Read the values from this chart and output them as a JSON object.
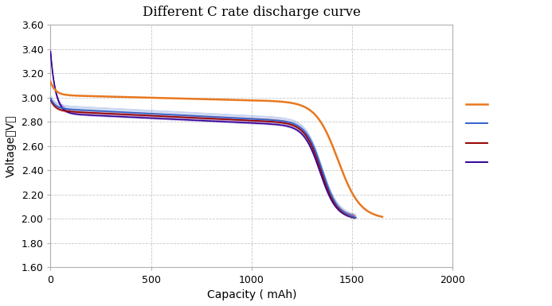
{
  "title": "Different C rate discharge curve",
  "xlabel": "Capacity ( mAh)",
  "ylabel": "Voltage（V）",
  "xlim": [
    0,
    2000
  ],
  "ylim": [
    1.6,
    3.6
  ],
  "xticks": [
    0,
    500,
    1000,
    1500,
    2000
  ],
  "yticks": [
    1.6,
    1.8,
    2.0,
    2.2,
    2.4,
    2.6,
    2.8,
    3.0,
    3.2,
    3.4,
    3.6
  ],
  "curves": {
    "25C": {
      "color": "#E87820",
      "linewidth": 1.8
    },
    "30C": {
      "color": "#3060CC",
      "linewidth": 1.2
    },
    "35C": {
      "color": "#990000",
      "linewidth": 1.2
    },
    "40C": {
      "color": "#330099",
      "linewidth": 1.2
    }
  },
  "background_color": "#ffffff",
  "grid_color": "#c8c8c8",
  "title_fontsize": 12,
  "axis_label_fontsize": 10,
  "tick_fontsize": 9,
  "legend_fontsize": 9
}
